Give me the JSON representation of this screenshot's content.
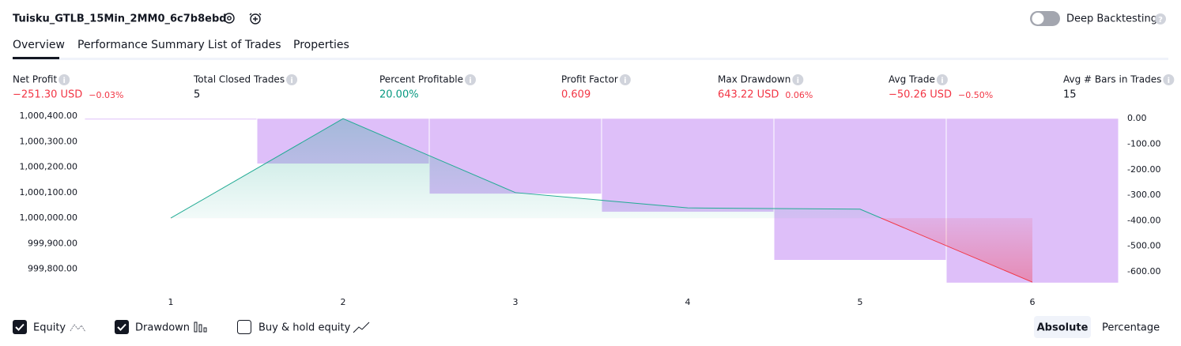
{
  "header": {
    "title": "Tuisku_GTLB_15Min_2MM0_6c7b8ebd",
    "deep_backtesting": "Deep Backtesting"
  },
  "tabs": [
    "Overview",
    "Performance Summary",
    "List of Trades",
    "Properties"
  ],
  "metrics": [
    {
      "label": "Net Profit",
      "value": "−251.30 USD",
      "secondary": "−0.03%",
      "color": "#f23645"
    },
    {
      "label": "Total Closed Trades",
      "value": "5",
      "color": "#131722"
    },
    {
      "label": "Percent Profitable",
      "value": "20.00%",
      "color": "#089981"
    },
    {
      "label": "Profit Factor",
      "value": "0.609",
      "color": "#f23645"
    },
    {
      "label": "Max Drawdown",
      "value": "643.22 USD",
      "secondary": "0.06%",
      "color": "#f23645"
    },
    {
      "label": "Avg Trade",
      "value": "−50.26 USD",
      "secondary": "−0.50%",
      "color": "#f23645"
    },
    {
      "label": "Avg # Bars in Trades",
      "value": "15",
      "color": "#131722"
    }
  ],
  "chart_data": {
    "type": "combo",
    "categories": [
      1,
      2,
      3,
      4,
      5,
      6
    ],
    "series": [
      {
        "name": "Equity",
        "type": "line",
        "color": "#22ab94",
        "negative_color": "#f23645",
        "baseline": 1000000,
        "values": [
          1000000,
          1000390,
          1000100,
          1000040,
          1000035,
          999748.7
        ]
      },
      {
        "name": "Drawdown",
        "type": "bar",
        "axis": "y2",
        "color": "#dcbcf9",
        "values": [
          0,
          -176,
          -294,
          -365,
          -554,
          -643.22
        ]
      }
    ],
    "ylim": [
      999740,
      1000400
    ],
    "yticks": [
      {
        "value": 1000400,
        "label": "1,000,400.00"
      },
      {
        "value": 1000300,
        "label": "1,000,300.00"
      },
      {
        "value": 1000200,
        "label": "1,000,200.00"
      },
      {
        "value": 1000100,
        "label": "1,000,100.00"
      },
      {
        "value": 1000000,
        "label": "1,000,000.00"
      },
      {
        "value": 999900,
        "label": "999,900.00"
      },
      {
        "value": 999800,
        "label": "999,800.00"
      }
    ],
    "y2lim": [
      -650,
      10
    ],
    "y2ticks": [
      {
        "value": 0,
        "label": "0.00"
      },
      {
        "value": -100,
        "label": "-100.00"
      },
      {
        "value": -200,
        "label": "-200.00"
      },
      {
        "value": -300,
        "label": "-300.00"
      },
      {
        "value": -400,
        "label": "-400.00"
      },
      {
        "value": -500,
        "label": "-500.00"
      },
      {
        "value": -600,
        "label": "-600.00"
      }
    ]
  },
  "controls": {
    "buy_hold": "Buy & hold equity",
    "absolute": "Absolute",
    "percentage": "Percentage"
  }
}
